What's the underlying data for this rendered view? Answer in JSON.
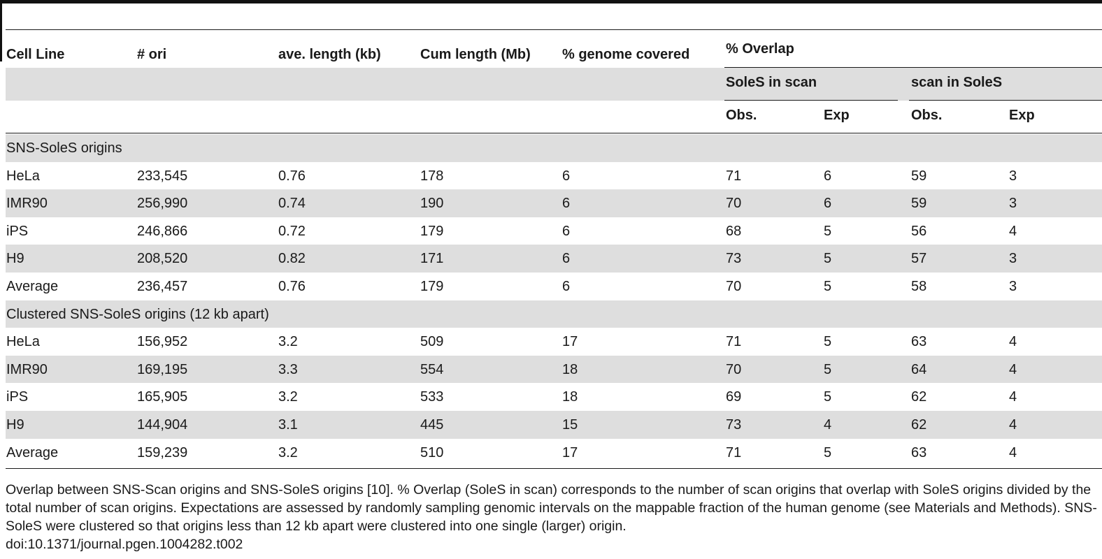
{
  "table": {
    "headers": {
      "cell_line": "Cell Line",
      "n_ori": "# ori",
      "ave_length": "ave. length (kb)",
      "cum_length": "Cum length (Mb)",
      "genome_covered": "% genome covered",
      "overlap": "% Overlap",
      "soles_in_scan": "SoleS in scan",
      "scan_in_soles": "scan in SoleS",
      "obs1": "Obs.",
      "exp1": "Exp",
      "obs2": "Obs.",
      "exp2": "Exp"
    },
    "sections": [
      {
        "title": "SNS-SoleS origins",
        "rows": [
          {
            "cell_line": "HeLa",
            "n_ori": "233,545",
            "ave_length": "0.76",
            "cum_length": "178",
            "genome_covered": "6",
            "obs1": "71",
            "exp1": "6",
            "obs2": "59",
            "exp2": "3"
          },
          {
            "cell_line": "IMR90",
            "n_ori": "256,990",
            "ave_length": "0.74",
            "cum_length": "190",
            "genome_covered": "6",
            "obs1": "70",
            "exp1": "6",
            "obs2": "59",
            "exp2": "3"
          },
          {
            "cell_line": "iPS",
            "n_ori": "246,866",
            "ave_length": "0.72",
            "cum_length": "179",
            "genome_covered": "6",
            "obs1": "68",
            "exp1": "5",
            "obs2": "56",
            "exp2": "4"
          },
          {
            "cell_line": "H9",
            "n_ori": "208,520",
            "ave_length": "0.82",
            "cum_length": "171",
            "genome_covered": "6",
            "obs1": "73",
            "exp1": "5",
            "obs2": "57",
            "exp2": "3"
          },
          {
            "cell_line": "Average",
            "n_ori": "236,457",
            "ave_length": "0.76",
            "cum_length": "179",
            "genome_covered": "6",
            "obs1": "70",
            "exp1": "5",
            "obs2": "58",
            "exp2": "3"
          }
        ]
      },
      {
        "title": "Clustered SNS-SoleS origins (12 kb apart)",
        "rows": [
          {
            "cell_line": "HeLa",
            "n_ori": "156,952",
            "ave_length": "3.2",
            "cum_length": "509",
            "genome_covered": "17",
            "obs1": "71",
            "exp1": "5",
            "obs2": "63",
            "exp2": "4"
          },
          {
            "cell_line": "IMR90",
            "n_ori": "169,195",
            "ave_length": "3.3",
            "cum_length": "554",
            "genome_covered": "18",
            "obs1": "70",
            "exp1": "5",
            "obs2": "64",
            "exp2": "4"
          },
          {
            "cell_line": "iPS",
            "n_ori": "165,905",
            "ave_length": "3.2",
            "cum_length": "533",
            "genome_covered": "18",
            "obs1": "69",
            "exp1": "5",
            "obs2": "62",
            "exp2": "4"
          },
          {
            "cell_line": "H9",
            "n_ori": "144,904",
            "ave_length": "3.1",
            "cum_length": "445",
            "genome_covered": "15",
            "obs1": "73",
            "exp1": "4",
            "obs2": "62",
            "exp2": "4"
          },
          {
            "cell_line": "Average",
            "n_ori": "159,239",
            "ave_length": "3.2",
            "cum_length": "510",
            "genome_covered": "17",
            "obs1": "71",
            "exp1": "5",
            "obs2": "63",
            "exp2": "4"
          }
        ]
      }
    ]
  },
  "caption": {
    "text": "Overlap between SNS-Scan origins and SNS-SoleS origins [10]. % Overlap (SoleS in scan) corresponds to the number of scan origins that overlap with SoleS origins divided by the total number of scan origins. Expectations are assessed by randomly sampling genomic intervals on the mappable fraction of the human genome (see Materials and Methods). SNS-SoleS were clustered so that origins less than 12 kb apart were clustered into one single (larger) origin.",
    "doi": "doi:10.1371/journal.pgen.1004282.t002"
  }
}
